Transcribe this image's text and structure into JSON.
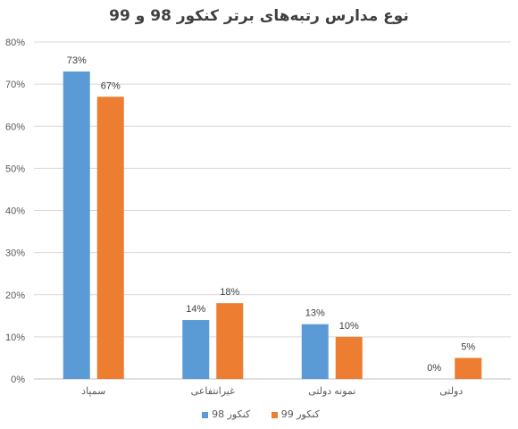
{
  "chart_data": {
    "type": "bar",
    "title": "نوع مدارس رتبه‌های برتر کنکور 98 و 99",
    "categories": [
      "سمپاد",
      "غیرانتفاعی",
      "نمونه دولتی",
      "دولتی"
    ],
    "series": [
      {
        "name": "کنکور 98",
        "color": "#5b9bd5",
        "values": [
          73,
          14,
          13,
          0
        ],
        "labels": [
          "73%",
          "14%",
          "13%",
          "0%"
        ]
      },
      {
        "name": "کنکور 99",
        "color": "#ed7d31",
        "values": [
          67,
          18,
          10,
          5
        ],
        "labels": [
          "67%",
          "18%",
          "10%",
          "5%"
        ]
      }
    ],
    "yticks": [
      "0%",
      "10%",
      "20%",
      "30%",
      "40%",
      "50%",
      "60%",
      "70%",
      "80%"
    ],
    "ylim": [
      0,
      80
    ],
    "grid": true,
    "legend_position": "bottom"
  }
}
